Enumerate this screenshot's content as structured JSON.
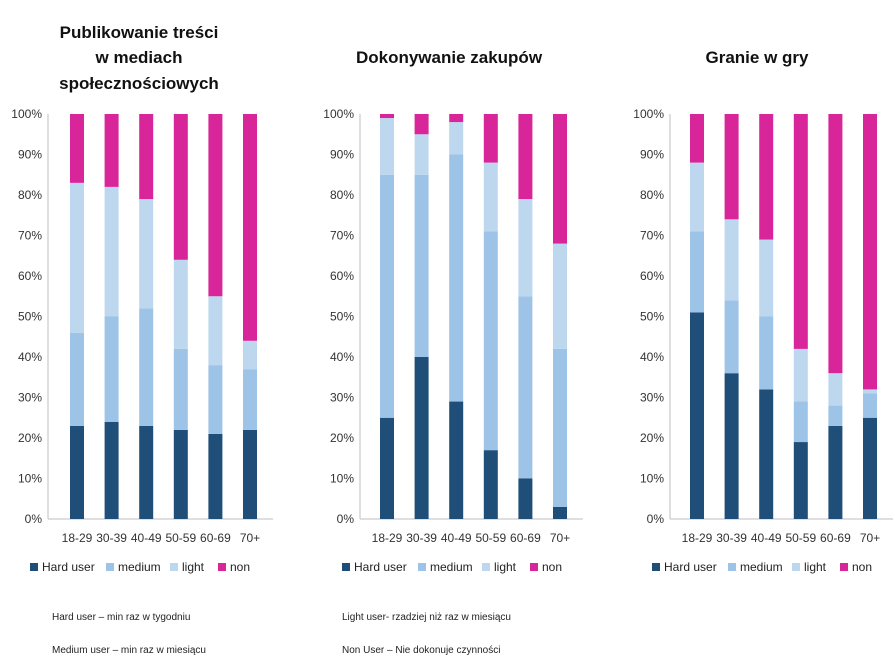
{
  "colors": {
    "hard": "#1f4e79",
    "medium": "#9dc3e6",
    "light": "#bdd7ee",
    "non": "#d9259a",
    "axis": "#bfbfbf"
  },
  "legend_labels": [
    "Hard user",
    "medium",
    "light",
    "non"
  ],
  "notes": {
    "left": [
      "Hard user – min raz w tygodniu",
      "Medium user – min raz w miesiącu"
    ],
    "right": [
      "Light user- rzadziej niż raz w miesiącu",
      "Non User – Nie dokonuje czynności"
    ]
  },
  "chart_data": [
    {
      "type": "bar",
      "stacked": true,
      "title_lines": [
        "Publikowanie treści",
        "w mediach",
        "społecznościowych"
      ],
      "categories": [
        "18-29",
        "30-39",
        "40-49",
        "50-59",
        "60-69",
        "70+"
      ],
      "yticks": [
        "0%",
        "10%",
        "20%",
        "30%",
        "40%",
        "50%",
        "60%",
        "70%",
        "80%",
        "90%",
        "100%"
      ],
      "ylim": [
        0,
        100
      ],
      "legend": "bottom",
      "series": [
        {
          "name": "Hard user",
          "values": [
            23,
            24,
            23,
            22,
            21,
            22
          ]
        },
        {
          "name": "medium",
          "values": [
            23,
            26,
            29,
            20,
            17,
            15
          ]
        },
        {
          "name": "light",
          "values": [
            37,
            32,
            27,
            22,
            17,
            7
          ]
        },
        {
          "name": "non",
          "values": [
            17,
            18,
            21,
            36,
            45,
            56
          ]
        }
      ]
    },
    {
      "type": "bar",
      "stacked": true,
      "title_lines": [
        "Dokonywanie zakupów"
      ],
      "categories": [
        "18-29",
        "30-39",
        "40-49",
        "50-59",
        "60-69",
        "70+"
      ],
      "yticks": [
        "0%",
        "10%",
        "20%",
        "30%",
        "40%",
        "50%",
        "60%",
        "70%",
        "80%",
        "90%",
        "100%"
      ],
      "ylim": [
        0,
        100
      ],
      "legend": "bottom",
      "series": [
        {
          "name": "Hard user",
          "values": [
            25,
            40,
            29,
            17,
            10,
            3
          ]
        },
        {
          "name": "medium",
          "values": [
            60,
            45,
            61,
            54,
            45,
            39
          ]
        },
        {
          "name": "light",
          "values": [
            14,
            10,
            8,
            17,
            24,
            26
          ]
        },
        {
          "name": "non",
          "values": [
            1,
            5,
            2,
            12,
            21,
            32
          ]
        }
      ]
    },
    {
      "type": "bar",
      "stacked": true,
      "title_lines": [
        "Granie w gry"
      ],
      "categories": [
        "18-29",
        "30-39",
        "40-49",
        "50-59",
        "60-69",
        "70+"
      ],
      "yticks": [
        "0%",
        "10%",
        "20%",
        "30%",
        "40%",
        "50%",
        "60%",
        "70%",
        "80%",
        "90%",
        "100%"
      ],
      "ylim": [
        0,
        100
      ],
      "legend": "bottom",
      "series": [
        {
          "name": "Hard user",
          "values": [
            51,
            36,
            32,
            19,
            23,
            25
          ]
        },
        {
          "name": "medium",
          "values": [
            20,
            18,
            18,
            10,
            5,
            6
          ]
        },
        {
          "name": "light",
          "values": [
            17,
            20,
            19,
            13,
            8,
            1
          ]
        },
        {
          "name": "non",
          "values": [
            12,
            26,
            31,
            58,
            64,
            68
          ]
        }
      ]
    }
  ]
}
